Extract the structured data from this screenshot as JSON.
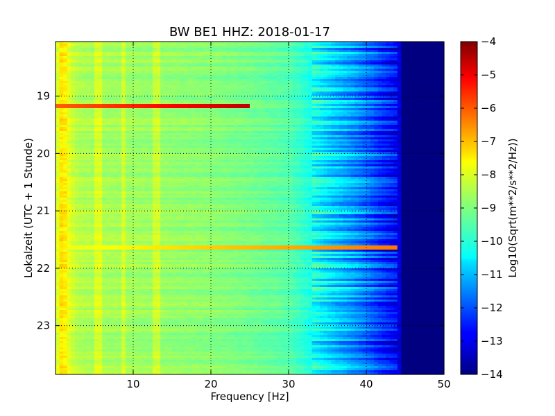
{
  "chart_data": {
    "type": "heatmap",
    "title": "BW BE1 HHZ: 2018-01-17",
    "xlabel": "Frequency [Hz]",
    "ylabel": "Lokalzeit (UTC + 1 Stunde)",
    "xlim": [
      0,
      50
    ],
    "ylim": [
      18.05,
      23.85
    ],
    "y_inverted": true,
    "x_ticks": [
      10,
      20,
      30,
      40,
      50
    ],
    "x_tick_labels": [
      "10",
      "20",
      "30",
      "40",
      "50"
    ],
    "y_ticks": [
      19,
      20,
      21,
      22,
      23
    ],
    "y_tick_labels": [
      "19",
      "20",
      "21",
      "22",
      "23"
    ],
    "grid": true,
    "colormap": "jet",
    "colorbar": {
      "label": "Log10(Sqrt(m**2/s**2/Hz))",
      "range": [
        -14,
        -4
      ],
      "ticks": [
        -4,
        -5,
        -6,
        -7,
        -8,
        -9,
        -10,
        -11,
        -12,
        -13,
        -14
      ],
      "tick_labels": [
        "−4",
        "−5",
        "−6",
        "−7",
        "−8",
        "−9",
        "−10",
        "−11",
        "−12",
        "−13",
        "−14"
      ]
    },
    "spectral_profile": {
      "frequency_hz": [
        0,
        0.5,
        1,
        1.5,
        2,
        3,
        5,
        10,
        15,
        20,
        25,
        30,
        32,
        34,
        36,
        38,
        40,
        42,
        44,
        45,
        50
      ],
      "log10_amplitude": [
        -8.6,
        -7.6,
        -7.4,
        -7.8,
        -8.2,
        -8.5,
        -8.6,
        -8.7,
        -8.8,
        -8.9,
        -9.1,
        -9.4,
        -9.8,
        -10.3,
        -10.8,
        -11.2,
        -11.7,
        -12.3,
        -12.8,
        -14,
        -14
      ]
    },
    "spectral_lines_hz": [
      8.8,
      12.9,
      5.5
    ],
    "events": [
      {
        "time": 19.17,
        "freq_range_hz": [
          0,
          25
        ],
        "peak_log10": -6.2
      },
      {
        "time": 21.63,
        "freq_range_hz": [
          0,
          44
        ],
        "peak_log10": -8.0
      }
    ]
  }
}
